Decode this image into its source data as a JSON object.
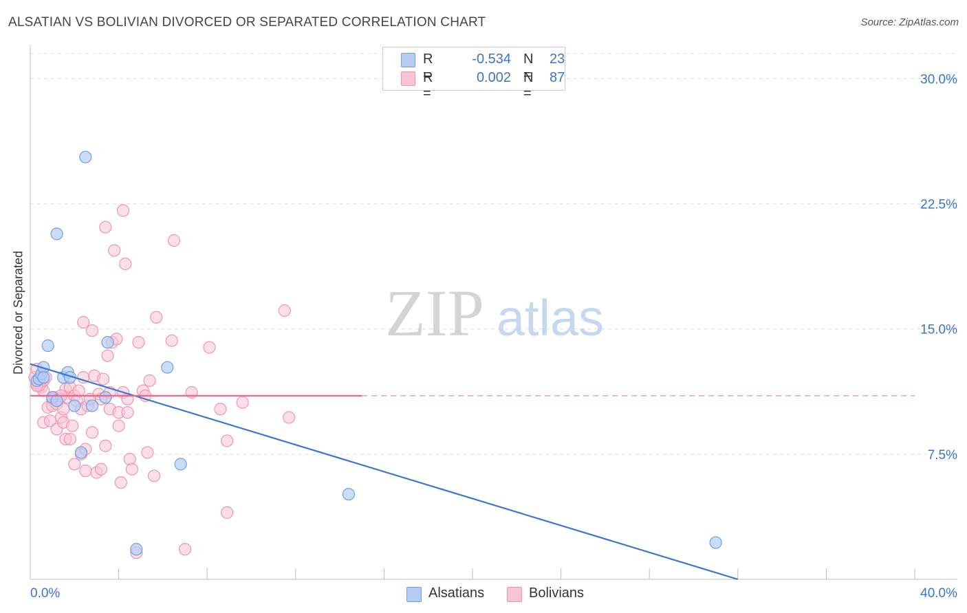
{
  "title": "ALSATIAN VS BOLIVIAN DIVORCED OR SEPARATED CORRELATION CHART",
  "source": "Source: ZipAtlas.com",
  "watermark": {
    "zip": "ZIP",
    "atlas": "atlas"
  },
  "legend": {
    "alsatians": {
      "r_label": "R =",
      "r_value": "-0.534",
      "n_label": "N =",
      "n_value": "23"
    },
    "bolivians": {
      "r_label": "R =",
      "r_value": "0.002",
      "n_label": "N =",
      "n_value": "87"
    }
  },
  "bottom_legend": {
    "alsatians": "Alsatians",
    "bolivians": "Bolivians"
  },
  "colors": {
    "alsatian_fill": "#b5cdf2",
    "alsatian_stroke": "#6d9ee3",
    "alsatian_line": "#3a74d4",
    "bolivian_fill": "#f8c4d4",
    "bolivian_stroke": "#ef93b1",
    "bolivian_line": "#e8668f",
    "tick_label": "#3a74c9",
    "grid": "#dcdcdc"
  },
  "chart_data": {
    "type": "scatter",
    "title": "ALSATIAN VS BOLIVIAN DIVORCED OR SEPARATED CORRELATION CHART",
    "xlabel": "",
    "ylabel": "Divorced or Separated",
    "xlim": [
      0,
      40
    ],
    "ylim": [
      0,
      31.5
    ],
    "x_ticks": [
      0,
      4,
      8,
      12,
      16,
      20,
      24,
      28,
      32,
      36,
      40
    ],
    "x_tick_labels": {
      "min": "0.0%",
      "max": "40.0%"
    },
    "y_ticks": [
      7.5,
      15.0,
      22.5,
      30.0
    ],
    "y_tick_labels": [
      "7.5%",
      "15.0%",
      "22.5%",
      "30.0%"
    ],
    "grid": true,
    "series": [
      {
        "name": "Alsatians",
        "points": [
          [
            0.3,
            11.9
          ],
          [
            0.4,
            12.0
          ],
          [
            0.5,
            12.3
          ],
          [
            0.6,
            12.7
          ],
          [
            0.8,
            14.0
          ],
          [
            1.0,
            10.9
          ],
          [
            1.2,
            10.7
          ],
          [
            1.5,
            12.1
          ],
          [
            1.7,
            12.4
          ],
          [
            1.8,
            12.1
          ],
          [
            2.0,
            10.4
          ],
          [
            2.3,
            7.6
          ],
          [
            2.5,
            25.3
          ],
          [
            2.8,
            10.4
          ],
          [
            3.4,
            10.9
          ],
          [
            3.5,
            14.2
          ],
          [
            1.2,
            20.7
          ],
          [
            4.8,
            1.8
          ],
          [
            6.2,
            12.7
          ],
          [
            6.8,
            6.9
          ],
          [
            14.4,
            5.1
          ],
          [
            31.0,
            2.2
          ],
          [
            0.6,
            12.1
          ]
        ],
        "trendline": {
          "x": [
            0,
            32
          ],
          "y": [
            12.9,
            0
          ]
        }
      },
      {
        "name": "Bolivians",
        "points": [
          [
            0.2,
            12.1
          ],
          [
            0.3,
            11.7
          ],
          [
            0.3,
            12.6
          ],
          [
            0.4,
            11.8
          ],
          [
            0.5,
            12.2
          ],
          [
            0.5,
            11.5
          ],
          [
            0.6,
            11.3
          ],
          [
            0.6,
            11.9
          ],
          [
            0.7,
            12.1
          ],
          [
            0.8,
            10.3
          ],
          [
            0.6,
            9.4
          ],
          [
            0.9,
            9.5
          ],
          [
            1.0,
            10.8
          ],
          [
            1.0,
            10.4
          ],
          [
            1.1,
            10.9
          ],
          [
            1.2,
            10.5
          ],
          [
            1.2,
            9.0
          ],
          [
            1.3,
            10.8
          ],
          [
            1.4,
            9.7
          ],
          [
            1.5,
            10.2
          ],
          [
            1.5,
            9.4
          ],
          [
            1.6,
            11.4
          ],
          [
            1.6,
            8.4
          ],
          [
            1.7,
            10.9
          ],
          [
            1.8,
            11.5
          ],
          [
            1.8,
            8.4
          ],
          [
            1.9,
            9.2
          ],
          [
            2.0,
            11.0
          ],
          [
            2.0,
            6.9
          ],
          [
            2.1,
            10.7
          ],
          [
            2.2,
            11.3
          ],
          [
            2.3,
            7.5
          ],
          [
            2.3,
            10.2
          ],
          [
            2.4,
            12.1
          ],
          [
            2.4,
            15.4
          ],
          [
            2.5,
            7.8
          ],
          [
            2.5,
            6.5
          ],
          [
            2.6,
            10.4
          ],
          [
            2.7,
            10.8
          ],
          [
            2.8,
            14.9
          ],
          [
            2.8,
            8.8
          ],
          [
            2.9,
            12.2
          ],
          [
            3.0,
            6.4
          ],
          [
            3.1,
            11.1
          ],
          [
            3.2,
            10.8
          ],
          [
            3.2,
            6.6
          ],
          [
            3.3,
            12.0
          ],
          [
            3.4,
            21.1
          ],
          [
            3.4,
            8.0
          ],
          [
            3.5,
            13.4
          ],
          [
            3.6,
            11.2
          ],
          [
            3.6,
            10.2
          ],
          [
            3.7,
            14.2
          ],
          [
            3.8,
            19.7
          ],
          [
            3.9,
            14.4
          ],
          [
            4.0,
            9.2
          ],
          [
            4.0,
            10.0
          ],
          [
            4.1,
            5.8
          ],
          [
            4.2,
            11.2
          ],
          [
            4.2,
            22.1
          ],
          [
            4.3,
            18.9
          ],
          [
            4.4,
            10.0
          ],
          [
            4.4,
            10.8
          ],
          [
            4.5,
            7.2
          ],
          [
            4.6,
            6.6
          ],
          [
            4.8,
            1.6
          ],
          [
            4.9,
            14.2
          ],
          [
            5.1,
            11.3
          ],
          [
            5.2,
            11.0
          ],
          [
            5.3,
            7.6
          ],
          [
            5.4,
            11.9
          ],
          [
            5.6,
            6.2
          ],
          [
            5.7,
            15.7
          ],
          [
            6.4,
            14.3
          ],
          [
            6.5,
            20.3
          ],
          [
            7.3,
            11.2
          ],
          [
            7.0,
            1.8
          ],
          [
            8.1,
            13.9
          ],
          [
            8.6,
            10.2
          ],
          [
            8.9,
            4.0
          ],
          [
            8.9,
            8.3
          ],
          [
            9.6,
            10.6
          ],
          [
            11.5,
            16.1
          ],
          [
            11.7,
            9.7
          ],
          [
            1.4,
            11.0
          ],
          [
            0.4,
            11.6
          ],
          [
            0.3,
            11.6
          ]
        ],
        "trendline": {
          "x": [
            0,
            15
          ],
          "y": [
            11.0,
            11.0
          ],
          "dashed_extension_x": [
            15,
            40
          ]
        }
      }
    ]
  }
}
